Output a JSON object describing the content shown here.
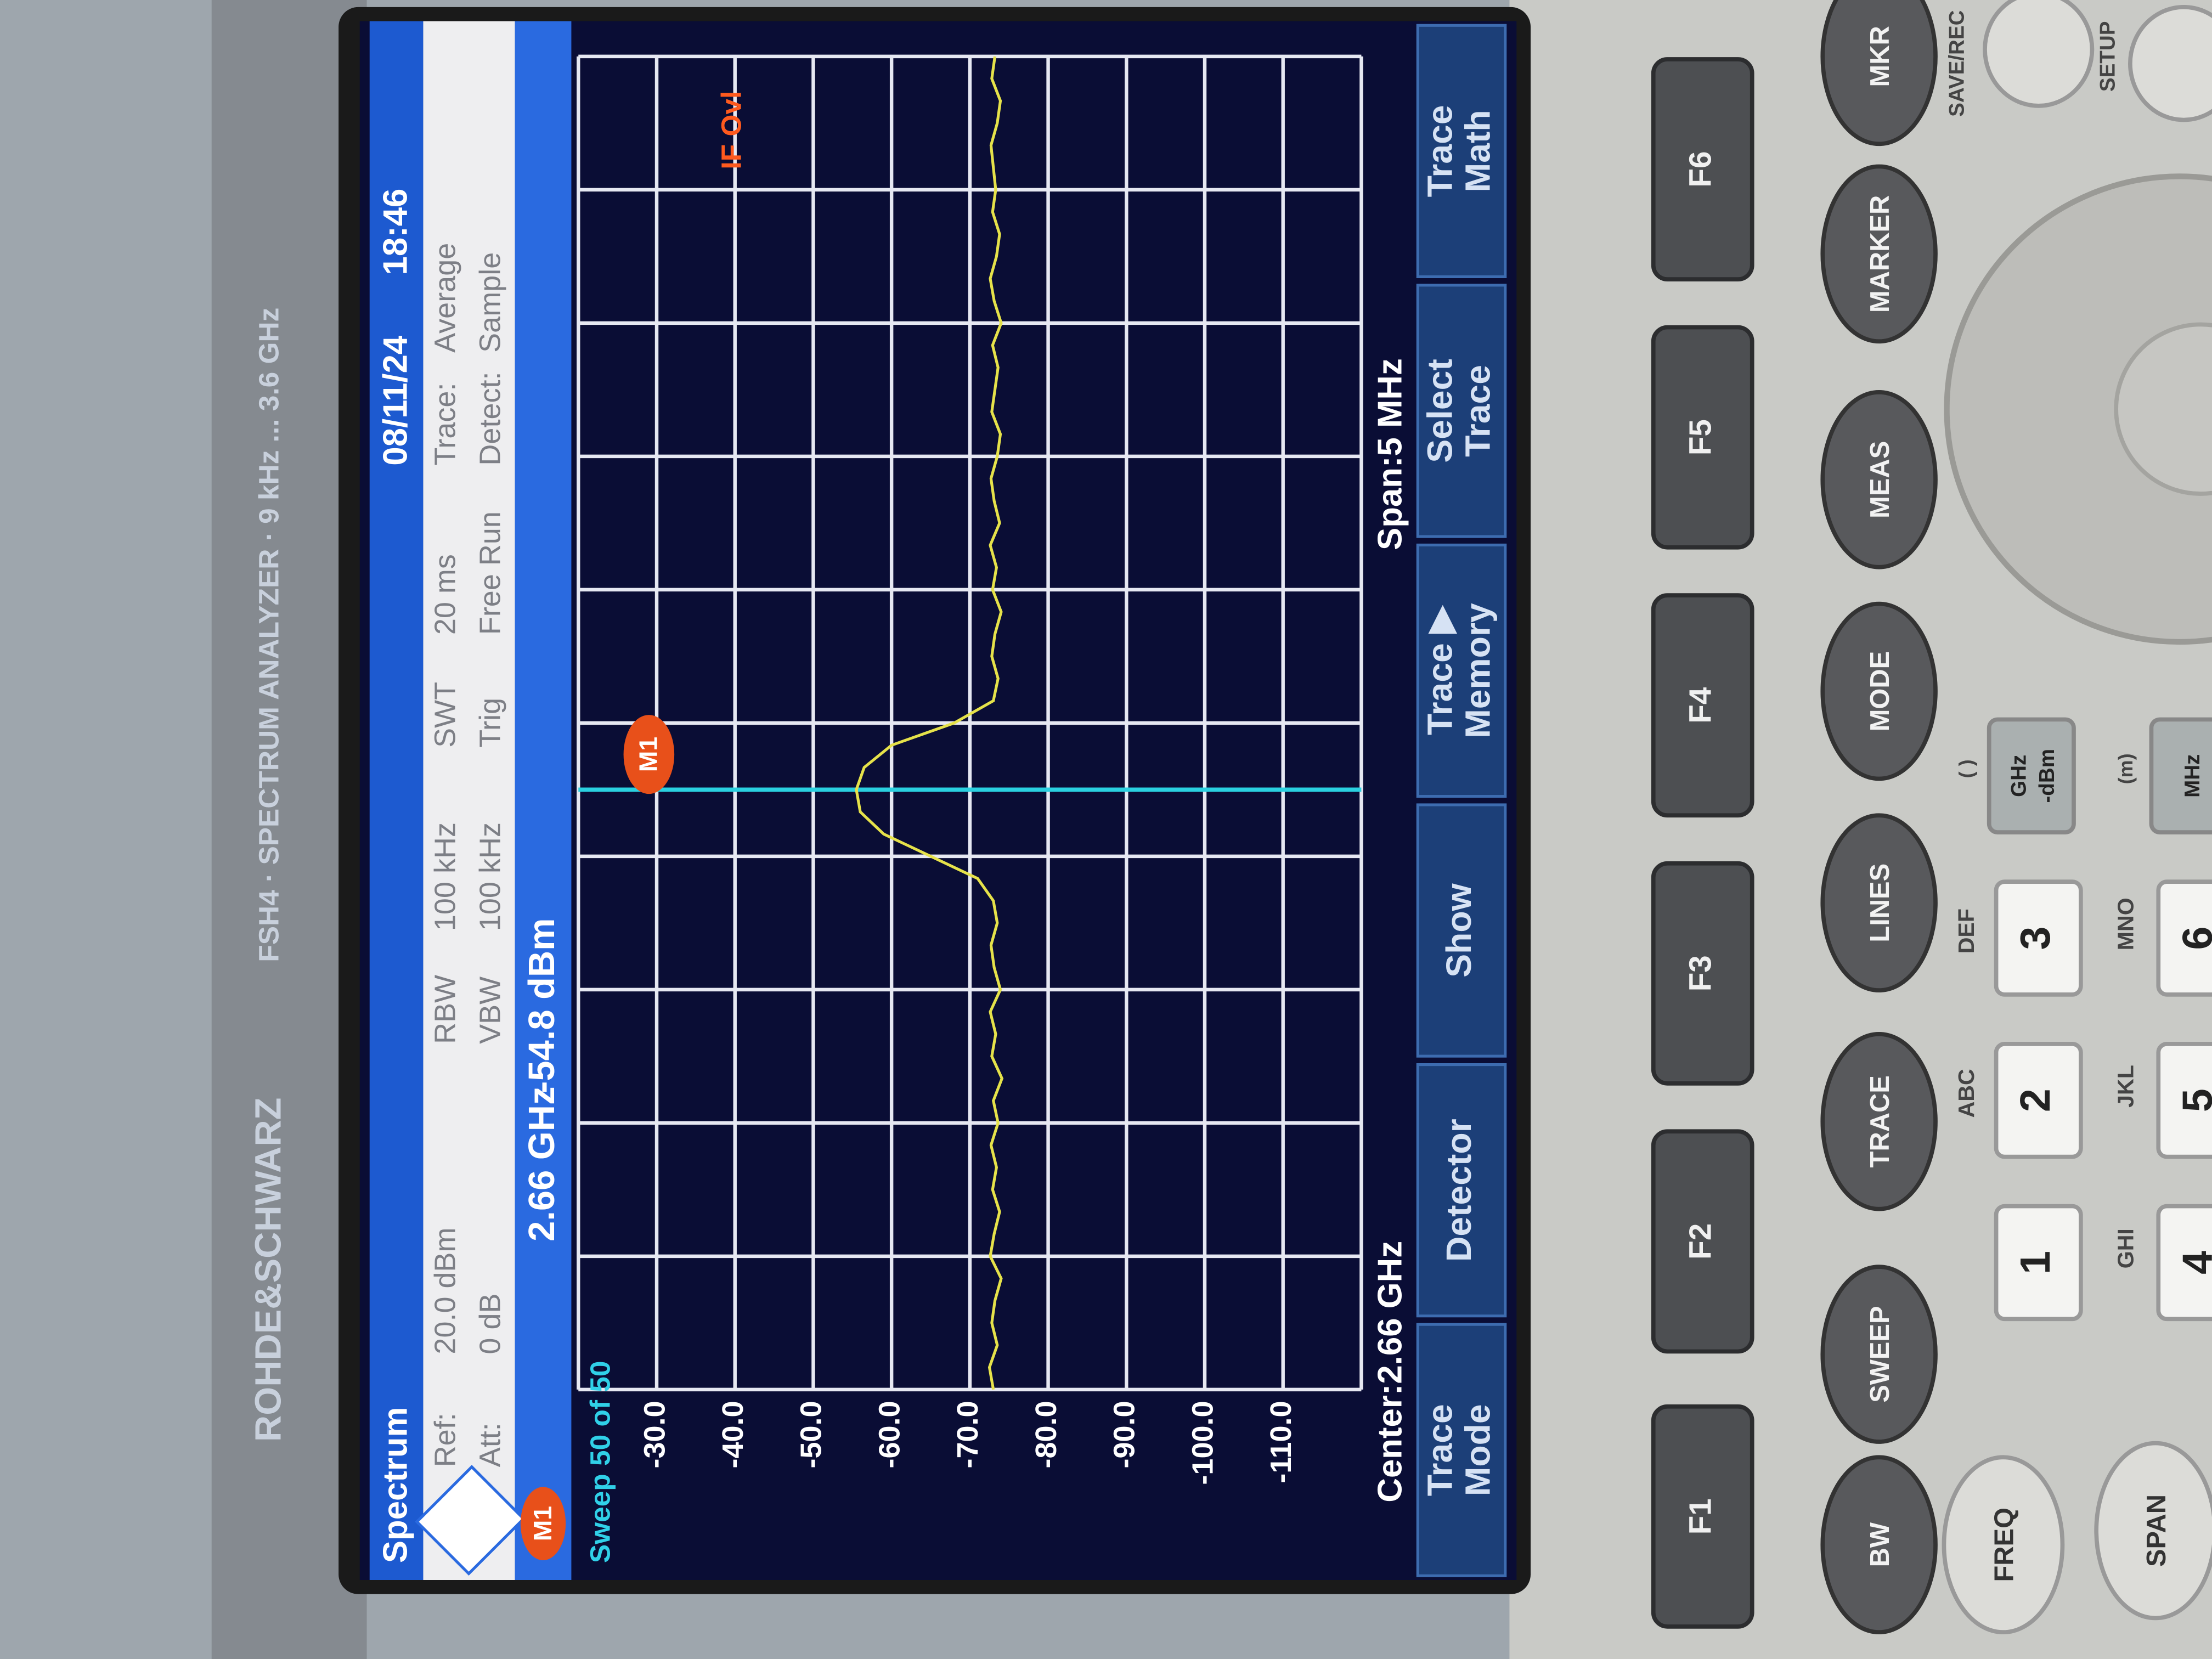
{
  "device": {
    "brand": "ROHDE&SCHWARZ",
    "model": "FSH4 · SPECTRUM ANALYZER · 9 kHz ... 3.6 GHz",
    "fkeys": [
      "F1",
      "F2",
      "F3",
      "F4",
      "F5",
      "F6"
    ],
    "round_keys": [
      "BW",
      "SWEEP",
      "TRACE",
      "LINES",
      "MODE",
      "MEAS",
      "MARKER",
      "MKR"
    ],
    "freq": "FREQ",
    "span": "SPAN",
    "save": "SAVE/REC",
    "setup": "SETUP",
    "keypad": [
      "1",
      "2",
      "3",
      "4",
      "5",
      "6"
    ],
    "keypad_letters": [
      "ABC",
      "DEF",
      "GHI",
      "JKL",
      "MNO"
    ],
    "unit_keys": [
      [
        "GHz",
        "-dBm"
      ],
      [
        "MHz"
      ]
    ],
    "unit_hints": [
      "( )",
      "(m)"
    ]
  },
  "screen": {
    "title": "Spectrum",
    "date": "08/11/24",
    "time": "18:46",
    "settings": [
      [
        "Ref:",
        "20.0 dBm",
        "RBW",
        "100 kHz",
        "SWT",
        "20 ms",
        "Trace:",
        "Average"
      ],
      [
        "Att:",
        "0 dB",
        "VBW",
        "100 kHz",
        "Trig",
        "Free Run",
        "Detect:",
        "Sample"
      ]
    ],
    "marker": {
      "label": "M1",
      "frequency": "2.66 GHz",
      "level": "-54.8 dBm"
    },
    "sweep": "Sweep 50 of 50",
    "status": "IF Ovl",
    "center": "Center:2.66 GHz",
    "span": "Span:5 MHz",
    "softkeys": [
      [
        "Trace",
        "Mode"
      ],
      [
        "Detector"
      ],
      [
        "Show"
      ],
      [
        "Trace ▶",
        "Memory"
      ],
      [
        "Select",
        "Trace"
      ],
      [
        "Trace",
        "Math"
      ]
    ]
  },
  "chart_data": {
    "type": "line",
    "color": "#e6e24a",
    "ylim": [
      -120,
      -20
    ],
    "yticks": [
      {
        "value": -30,
        "label": "-30.0"
      },
      {
        "value": -40,
        "label": "-40.0"
      },
      {
        "value": -50,
        "label": "-50.0"
      },
      {
        "value": -60,
        "label": "-60.0"
      },
      {
        "value": -70,
        "label": "-70.0"
      },
      {
        "value": -80,
        "label": "-80.0"
      },
      {
        "value": -90,
        "label": "-90.0"
      },
      {
        "value": -100,
        "label": "-100.0"
      },
      {
        "value": -110,
        "label": "-110.0"
      }
    ],
    "grid": true,
    "values": [
      -73,
      -72.5,
      -73.5,
      -72.8,
      -73.2,
      -74,
      -72.6,
      -73.1,
      -73.8,
      -72.9,
      -73.4,
      -72.7,
      -73.6,
      -73,
      -74.1,
      -72.8,
      -73.3,
      -72.6,
      -73.9,
      -73.1,
      -72.7,
      -73.5,
      -73,
      -71,
      -65,
      -59,
      -56,
      -55.5,
      -56.5,
      -60,
      -68,
      -73,
      -73.6,
      -72.8,
      -73.2,
      -74,
      -72.9,
      -73.4,
      -72.6,
      -73.8,
      -73.1,
      -72.7,
      -73.5,
      -73.9,
      -72.8,
      -73.2,
      -73.6,
      -72.9,
      -74,
      -73.1,
      -72.6,
      -73.4,
      -73.8,
      -72.9,
      -73.3,
      -73,
      -72.7,
      -73.5,
      -73.9,
      -72.8,
      -73.2
    ]
  }
}
